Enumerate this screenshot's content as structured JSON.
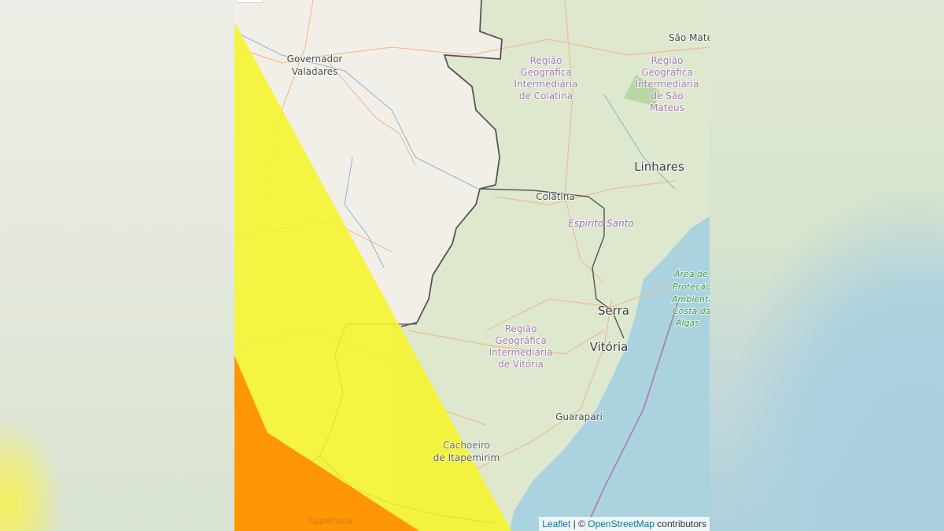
{
  "map": {
    "labels": {
      "governador_1": "Governador",
      "governador_2": "Valadares",
      "colatina_region": [
        "Região",
        "Geográfica",
        "Intermediária",
        "de Colatina"
      ],
      "sao_mateus_region": [
        "Região",
        "Geográfica",
        "Intermediária",
        "de São",
        "Mateus"
      ],
      "sao_mateus_city": "São Mate",
      "linhares": "Linhares",
      "colatina": "Colatina",
      "state": "Espírito Santo",
      "apa": [
        "Área de",
        "Proteção",
        "Ambiental",
        "Costa das",
        "Algas"
      ],
      "serra": "Serra",
      "vitoria": "Vitória",
      "vitoria_region": [
        "Região",
        "Geográfica",
        "Intermediária",
        "de Vitória"
      ],
      "guarapari": "Guarapari",
      "cachoeiro_1": "Cachoeiro",
      "cachoeiro_2": "de Itapemirim",
      "itaperuna": "Itaperuna"
    },
    "alert_colors": {
      "yellow": "#f7f526",
      "orange": "#ff8c00"
    },
    "attribution": {
      "leaflet": "Leaflet",
      "sep": " | © ",
      "osm": "OpenStreetMap",
      "suffix": " contributors"
    }
  }
}
